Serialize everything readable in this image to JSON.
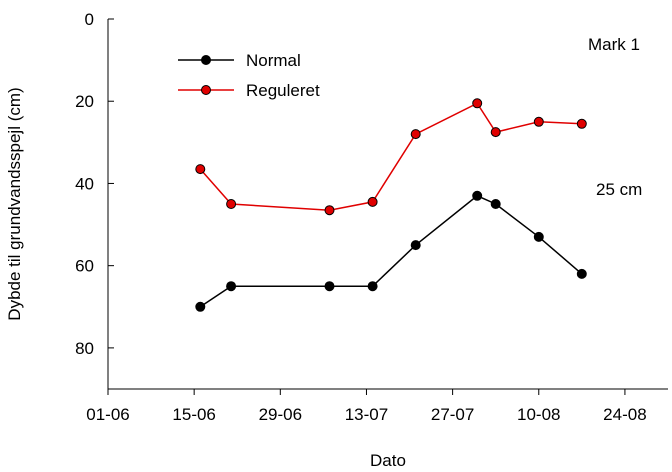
{
  "chart_data": {
    "type": "line",
    "xlabel": "Dato",
    "ylabel": "Dybde til grundvandsspejl (cm)",
    "x_axis": {
      "type": "date",
      "range": [
        "2000-06-01",
        "2000-08-31"
      ],
      "ticks": [
        {
          "date": "2000-06-01",
          "label": "01-06"
        },
        {
          "date": "2000-06-15",
          "label": "15-06"
        },
        {
          "date": "2000-06-29",
          "label": "29-06"
        },
        {
          "date": "2000-07-13",
          "label": "13-07"
        },
        {
          "date": "2000-07-27",
          "label": "27-07"
        },
        {
          "date": "2000-08-10",
          "label": "10-08"
        },
        {
          "date": "2000-08-24",
          "label": "24-08"
        }
      ]
    },
    "y_axis": {
      "inverted": true,
      "range": [
        0,
        90
      ],
      "ticks": [
        0,
        20,
        40,
        60,
        80
      ]
    },
    "grid": false,
    "legend": "top-left",
    "annotations": [
      "Mark 1",
      "25 cm"
    ],
    "series": [
      {
        "name": "Normal",
        "color": "#000000",
        "marker_fill": "#000000",
        "points": [
          {
            "x": "2000-06-16",
            "y": 70
          },
          {
            "x": "2000-06-21",
            "y": 65
          },
          {
            "x": "2000-07-07",
            "y": 65
          },
          {
            "x": "2000-07-14",
            "y": 65
          },
          {
            "x": "2000-07-21",
            "y": 55
          },
          {
            "x": "2000-07-31",
            "y": 43
          },
          {
            "x": "2000-08-03",
            "y": 45
          },
          {
            "x": "2000-08-10",
            "y": 53
          },
          {
            "x": "2000-08-17",
            "y": 62
          }
        ]
      },
      {
        "name": "Reguleret",
        "color": "#e00000",
        "marker_fill": "#e00000",
        "points": [
          {
            "x": "2000-06-16",
            "y": 36.5
          },
          {
            "x": "2000-06-21",
            "y": 45
          },
          {
            "x": "2000-07-07",
            "y": 46.5
          },
          {
            "x": "2000-07-14",
            "y": 44.5
          },
          {
            "x": "2000-07-21",
            "y": 28
          },
          {
            "x": "2000-07-31",
            "y": 20.5
          },
          {
            "x": "2000-08-03",
            "y": 27.5
          },
          {
            "x": "2000-08-10",
            "y": 25
          },
          {
            "x": "2000-08-17",
            "y": 25.5
          }
        ]
      }
    ]
  }
}
